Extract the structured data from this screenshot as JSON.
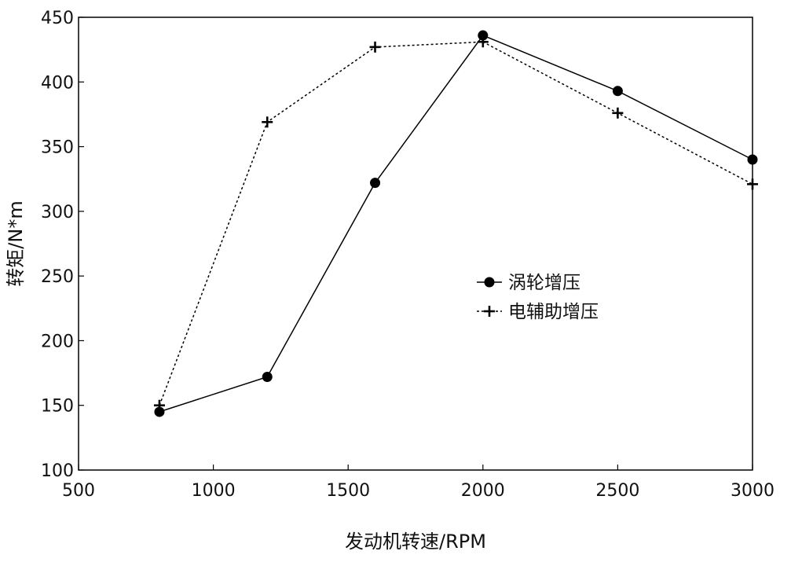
{
  "chart_data": {
    "type": "line",
    "title": "",
    "xlabel": "发动机转速/RPM",
    "ylabel": "转矩/N*m",
    "xlim": [
      500,
      3000
    ],
    "ylim": [
      100,
      450
    ],
    "xticks": [
      500,
      1000,
      1500,
      2000,
      2500,
      3000
    ],
    "yticks": [
      100,
      150,
      200,
      250,
      300,
      350,
      400,
      450
    ],
    "grid": false,
    "legend_position": "center-right",
    "series": [
      {
        "name": "涡轮增压",
        "line_style": "solid",
        "marker": "circle",
        "color": "#000000",
        "x": [
          800,
          1200,
          1600,
          2000,
          2500,
          3000
        ],
        "y": [
          145,
          172,
          322,
          436,
          393,
          340
        ]
      },
      {
        "name": "电辅助增压",
        "line_style": "dotted",
        "marker": "plus",
        "color": "#000000",
        "x": [
          800,
          1200,
          1600,
          2000,
          2500,
          3000
        ],
        "y": [
          150,
          369,
          427,
          431,
          376,
          321
        ]
      }
    ]
  }
}
